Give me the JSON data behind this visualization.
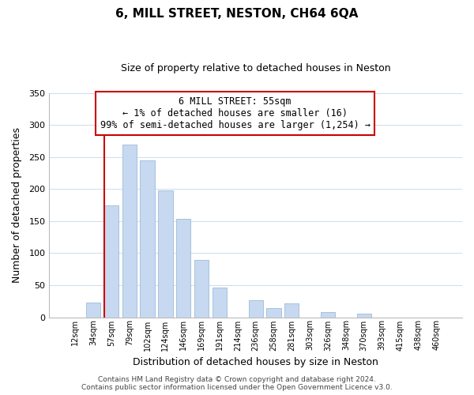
{
  "title": "6, MILL STREET, NESTON, CH64 6QA",
  "subtitle": "Size of property relative to detached houses in Neston",
  "xlabel": "Distribution of detached houses by size in Neston",
  "ylabel": "Number of detached properties",
  "bar_color": "#c6d9f0",
  "bar_edge_color": "#9dbad8",
  "categories": [
    "12sqm",
    "34sqm",
    "57sqm",
    "79sqm",
    "102sqm",
    "124sqm",
    "146sqm",
    "169sqm",
    "191sqm",
    "214sqm",
    "236sqm",
    "258sqm",
    "281sqm",
    "303sqm",
    "326sqm",
    "348sqm",
    "370sqm",
    "393sqm",
    "415sqm",
    "438sqm",
    "460sqm"
  ],
  "values": [
    0,
    23,
    175,
    270,
    245,
    198,
    153,
    90,
    46,
    0,
    26,
    14,
    21,
    0,
    8,
    0,
    5,
    0,
    0,
    0,
    0
  ],
  "ylim": [
    0,
    350
  ],
  "yticks": [
    0,
    50,
    100,
    150,
    200,
    250,
    300,
    350
  ],
  "vline_idx": 2,
  "vline_color": "#cc0000",
  "annotation_text": "6 MILL STREET: 55sqm\n← 1% of detached houses are smaller (16)\n99% of semi-detached houses are larger (1,254) →",
  "annotation_box_color": "#ffffff",
  "annotation_box_edgecolor": "#cc0000",
  "footer_line1": "Contains HM Land Registry data © Crown copyright and database right 2024.",
  "footer_line2": "Contains public sector information licensed under the Open Government Licence v3.0.",
  "background_color": "#ffffff",
  "grid_color": "#ccdcee"
}
